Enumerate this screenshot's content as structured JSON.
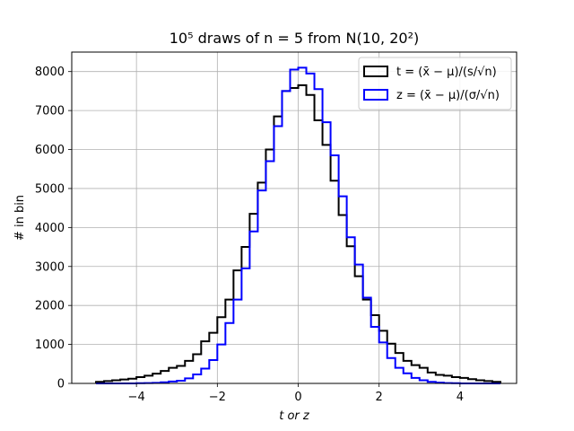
{
  "chart_data": {
    "type": "histogram",
    "title": "10⁵ draws of n = 5 from N(10, 20²)",
    "xlabel": "t or z",
    "ylabel": "# in bin",
    "xlim": [
      -5.6,
      5.4
    ],
    "ylim": [
      0,
      8500
    ],
    "xticks": [
      -4,
      -2,
      0,
      2,
      4
    ],
    "xtick_labels": [
      "−4",
      "−2",
      "0",
      "2",
      "4"
    ],
    "yticks": [
      0,
      1000,
      2000,
      3000,
      4000,
      5000,
      6000,
      7000,
      8000
    ],
    "ytick_labels": [
      "0",
      "1000",
      "2000",
      "3000",
      "4000",
      "5000",
      "6000",
      "7000",
      "8000"
    ],
    "grid": true,
    "legend_position": "top-right",
    "bin_edges": [
      -5.0,
      -4.8,
      -4.6,
      -4.4,
      -4.2,
      -4.0,
      -3.8,
      -3.6,
      -3.4,
      -3.2,
      -3.0,
      -2.8,
      -2.6,
      -2.4,
      -2.2,
      -2.0,
      -1.8,
      -1.6,
      -1.4,
      -1.2,
      -1.0,
      -0.8,
      -0.6,
      -0.4,
      -0.2,
      0.0,
      0.2,
      0.4,
      0.6,
      0.8,
      1.0,
      1.2,
      1.4,
      1.6,
      1.8,
      2.0,
      2.2,
      2.4,
      2.6,
      2.8,
      3.0,
      3.2,
      3.4,
      3.6,
      3.8,
      4.0,
      4.2,
      4.4,
      4.6,
      4.8,
      5.0
    ],
    "series": [
      {
        "name": "t = (x̄ − μ)/(s/√n)",
        "color": "#000000",
        "values": [
          40,
          60,
          80,
          100,
          120,
          160,
          200,
          250,
          320,
          400,
          450,
          580,
          750,
          1080,
          1300,
          1700,
          2150,
          2900,
          3500,
          4350,
          5150,
          6000,
          6850,
          7500,
          7580,
          7650,
          7400,
          6750,
          6120,
          5200,
          4320,
          3520,
          2750,
          2150,
          1750,
          1350,
          1020,
          780,
          580,
          470,
          400,
          280,
          220,
          200,
          160,
          140,
          110,
          80,
          60,
          40
        ]
      },
      {
        "name": "z = (x̄ − μ)/(σ/√n)",
        "color": "#0000ff",
        "values": [
          0,
          0,
          0,
          0,
          0,
          5,
          10,
          15,
          30,
          50,
          70,
          130,
          230,
          380,
          600,
          1000,
          1550,
          2150,
          2950,
          3900,
          4950,
          5700,
          6600,
          7500,
          8050,
          8100,
          7950,
          7550,
          6700,
          5850,
          4800,
          3750,
          3050,
          2200,
          1450,
          1050,
          650,
          400,
          260,
          140,
          80,
          40,
          20,
          10,
          5,
          0,
          0,
          0,
          0,
          0
        ]
      }
    ]
  }
}
